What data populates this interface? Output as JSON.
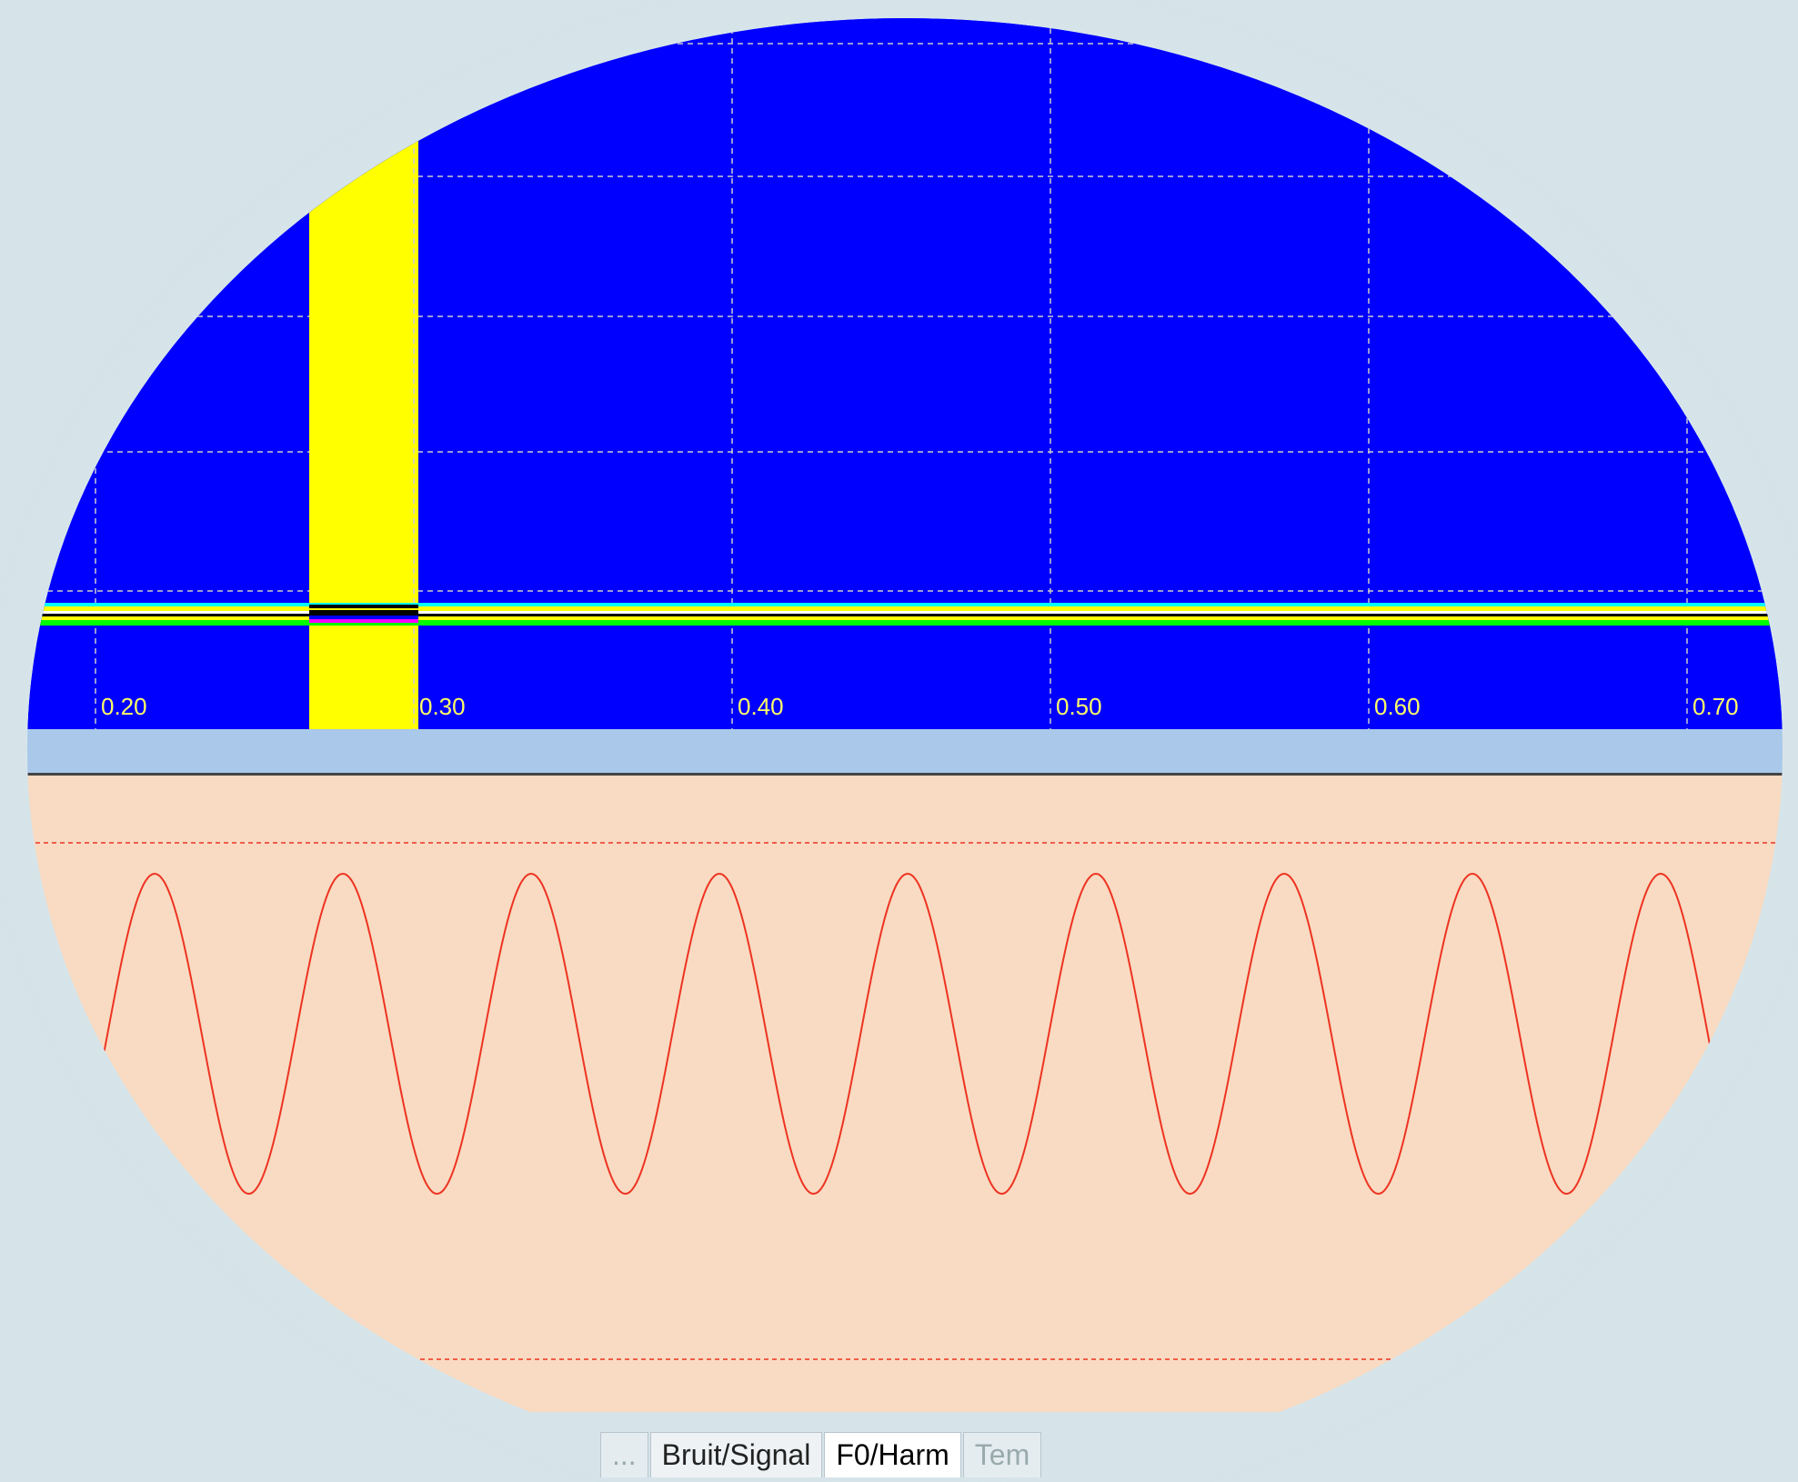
{
  "spectrogram": {
    "background_color": "#0000ff",
    "highlight_color": "#ffff00",
    "grid_color": "#cccccc",
    "tick_label_color": "#ffff66",
    "x_ticks": [
      "0.20",
      "0.30",
      "0.40",
      "0.50",
      "0.60",
      "0.70"
    ],
    "band_colors": [
      "#00ff00",
      "#ffff00",
      "#ffffff",
      "#000000"
    ]
  },
  "waveform": {
    "background_color": "#f8dbc2",
    "line_color": "#ee3322",
    "cycles_visible": 9
  },
  "tabs": [
    {
      "label": "...",
      "state": "faded"
    },
    {
      "label": "Bruit/Signal",
      "state": "normal"
    },
    {
      "label": "F0/Harm",
      "state": "active"
    },
    {
      "label": "Tem",
      "state": "faded"
    }
  ]
}
